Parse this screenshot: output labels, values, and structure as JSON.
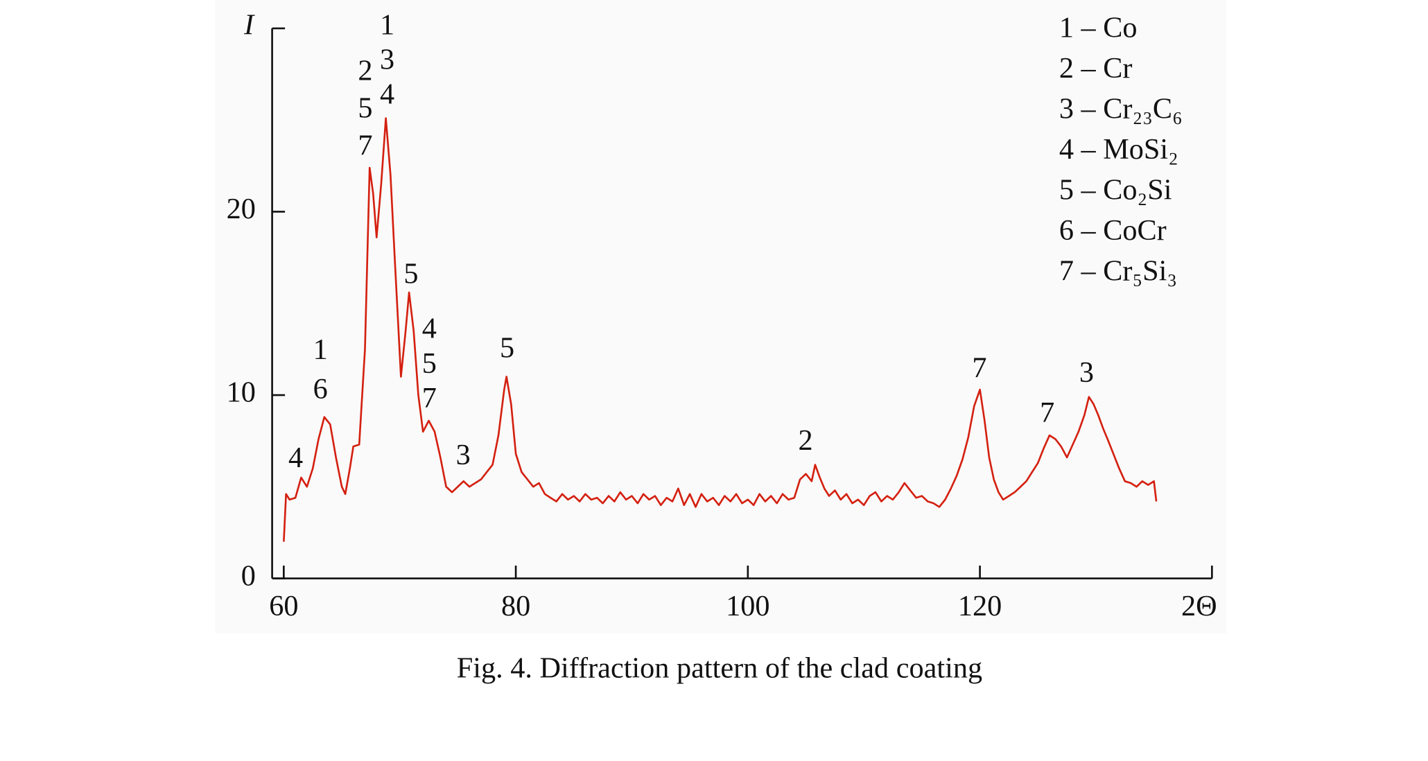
{
  "chart_data": {
    "type": "line",
    "xlabel": "2Θ",
    "ylabel": "I",
    "caption": "Fig. 4. Diffraction pattern of the clad coating",
    "xlim": [
      59,
      140
    ],
    "xticks": [
      60,
      80,
      100,
      120
    ],
    "ylim": [
      0,
      30
    ],
    "yticks": [
      0,
      10,
      20
    ],
    "legend": [
      "1 – Co",
      "2 – Cr",
      "3 – Cr₂₃C₆",
      "4 – MoSi₂",
      "5 – Co₂Si",
      "6 – CoCr",
      "7 – Cr₅Si₃"
    ],
    "annotations": [
      [
        "4"
      ],
      [
        "1",
        "6"
      ],
      [
        "2",
        "5",
        "7"
      ],
      [
        "1",
        "3",
        "4"
      ],
      [
        "5"
      ],
      [
        "4",
        "5",
        "7"
      ],
      [
        "3"
      ],
      [
        "5"
      ],
      [
        "2"
      ],
      [
        "7"
      ],
      [
        "7"
      ],
      [
        "3"
      ]
    ],
    "series": [
      {
        "color": "#d42010",
        "x": [
          60,
          60.2,
          60.5,
          61,
          61.5,
          62,
          62.5,
          63,
          63.5,
          64,
          64.5,
          65,
          65.3,
          65.7,
          66,
          66.5,
          67,
          67.4,
          67.7,
          68,
          68.4,
          68.8,
          69.2,
          69.6,
          70.1,
          70.5,
          70.8,
          71.2,
          71.6,
          72,
          72.5,
          73,
          73.5,
          74,
          74.5,
          75,
          75.5,
          76,
          76.5,
          77,
          77.5,
          78,
          78.5,
          79,
          79.2,
          79.6,
          80,
          80.5,
          81,
          81.5,
          82,
          82.5,
          83,
          83.5,
          84,
          84.5,
          85,
          85.5,
          86,
          86.5,
          87,
          87.5,
          88,
          88.5,
          89,
          89.5,
          90,
          90.5,
          91,
          91.5,
          92,
          92.5,
          93,
          93.5,
          94,
          94.5,
          95,
          95.5,
          96,
          96.5,
          97,
          97.5,
          98,
          98.5,
          99,
          99.5,
          100,
          100.5,
          101,
          101.5,
          102,
          102.5,
          103,
          103.5,
          104,
          104.5,
          105,
          105.5,
          105.8,
          106.2,
          106.6,
          107,
          107.5,
          108,
          108.5,
          109,
          109.5,
          110,
          110.5,
          111,
          111.5,
          112,
          112.5,
          113,
          113.5,
          114,
          114.5,
          115,
          115.5,
          116,
          116.5,
          117,
          117.5,
          118,
          118.5,
          119,
          119.5,
          120,
          120.4,
          120.8,
          121.2,
          121.6,
          122,
          122.5,
          123,
          123.5,
          124,
          124.5,
          125,
          125.5,
          126,
          126.5,
          127,
          127.5,
          128,
          128.5,
          129,
          129.4,
          129.8,
          130.2,
          130.6,
          131,
          131.5,
          132,
          132.5,
          133,
          133.5,
          134,
          134.5,
          135,
          135.2
        ],
        "values": [
          2.0,
          4.6,
          4.3,
          4.4,
          5.5,
          5.0,
          6.0,
          7.6,
          8.8,
          8.4,
          6.6,
          5.0,
          4.6,
          6.0,
          7.2,
          7.3,
          12.5,
          22.4,
          21.0,
          18.6,
          21.5,
          25.1,
          22.0,
          17.0,
          11.0,
          13.5,
          15.6,
          13.5,
          10.0,
          8.0,
          8.6,
          8.0,
          6.6,
          5.0,
          4.7,
          5.0,
          5.3,
          5.0,
          5.2,
          5.4,
          5.8,
          6.2,
          7.8,
          10.3,
          11.0,
          9.5,
          6.8,
          5.8,
          5.4,
          5.0,
          5.2,
          4.6,
          4.4,
          4.2,
          4.6,
          4.3,
          4.5,
          4.2,
          4.6,
          4.3,
          4.4,
          4.1,
          4.5,
          4.2,
          4.7,
          4.3,
          4.5,
          4.1,
          4.6,
          4.3,
          4.5,
          4.0,
          4.4,
          4.2,
          4.9,
          4.0,
          4.6,
          3.9,
          4.6,
          4.2,
          4.4,
          4.0,
          4.5,
          4.2,
          4.6,
          4.1,
          4.3,
          4.0,
          4.6,
          4.2,
          4.5,
          4.1,
          4.6,
          4.3,
          4.4,
          5.4,
          5.7,
          5.3,
          6.2,
          5.5,
          4.9,
          4.5,
          4.8,
          4.3,
          4.6,
          4.1,
          4.3,
          4.0,
          4.5,
          4.7,
          4.2,
          4.5,
          4.3,
          4.7,
          5.2,
          4.8,
          4.4,
          4.5,
          4.2,
          4.1,
          3.9,
          4.3,
          4.9,
          5.6,
          6.5,
          7.7,
          9.4,
          10.3,
          8.6,
          6.6,
          5.4,
          4.7,
          4.3,
          4.5,
          4.7,
          5.0,
          5.3,
          5.8,
          6.3,
          7.1,
          7.8,
          7.6,
          7.2,
          6.6,
          7.3,
          8.0,
          8.9,
          9.9,
          9.5,
          8.9,
          8.2,
          7.6,
          6.8,
          6.0,
          5.3,
          5.2,
          5.0,
          5.3,
          5.1,
          5.3,
          4.2
        ]
      }
    ]
  }
}
